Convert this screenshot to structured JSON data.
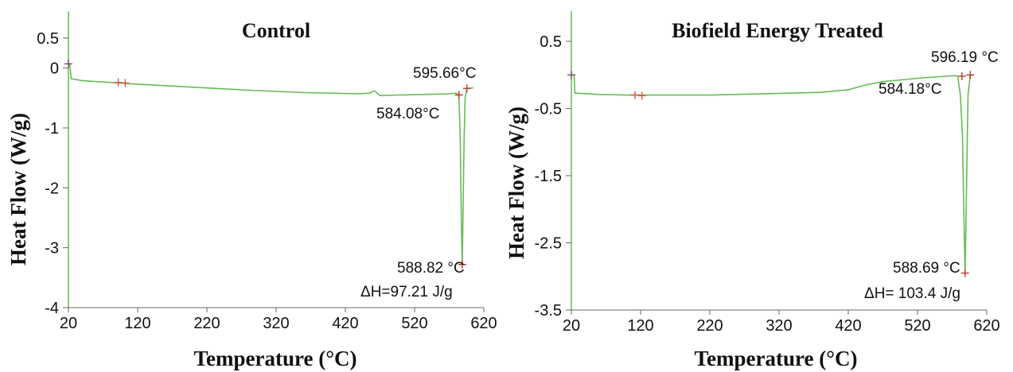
{
  "chart_data": [
    {
      "type": "line",
      "title": "Control",
      "xlabel": "Temperature (°C)",
      "ylabel": "Heat Flow (W/g)",
      "xlim": [
        20,
        620
      ],
      "ylim": [
        -4,
        0.95
      ],
      "x_ticks": [
        20,
        120,
        220,
        320,
        420,
        520,
        620
      ],
      "y_ticks": [
        0.5,
        0,
        -1,
        -2,
        -3,
        -4
      ],
      "y_tick_labels": [
        "0.5",
        "0",
        "-1",
        "-2",
        "-3",
        "-4"
      ],
      "series": [
        {
          "color": "#66bb55",
          "points": [
            [
              20,
              0.07
            ],
            [
              22,
              0.06
            ],
            [
              24,
              -0.18
            ],
            [
              40,
              -0.21
            ],
            [
              80,
              -0.24
            ],
            [
              120,
              -0.27
            ],
            [
              200,
              -0.32
            ],
            [
              280,
              -0.37
            ],
            [
              360,
              -0.41
            ],
            [
              440,
              -0.43
            ],
            [
              455,
              -0.42
            ],
            [
              462,
              -0.38
            ],
            [
              470,
              -0.46
            ],
            [
              500,
              -0.45
            ],
            [
              540,
              -0.44
            ],
            [
              570,
              -0.43
            ],
            [
              580,
              -0.42
            ],
            [
              584,
              -0.45
            ],
            [
              586,
              -1.2
            ],
            [
              587.5,
              -2.5
            ],
            [
              588.82,
              -3.28
            ],
            [
              590,
              -2.4
            ],
            [
              591.5,
              -1.2
            ],
            [
              593,
              -0.5
            ],
            [
              595.66,
              -0.34
            ],
            [
              605,
              -0.33
            ]
          ]
        }
      ],
      "annotations": [
        {
          "text": "595.66°C",
          "x": 595.66,
          "y": -0.34
        },
        {
          "text": "584.08°C",
          "x": 584.08,
          "y": -0.45
        },
        {
          "text": "588.82 °C",
          "x": 588.82,
          "y": -3.28
        },
        {
          "text": "ΔH=97.21 J/g"
        }
      ]
    },
    {
      "type": "line",
      "title": "Biofield Energy Treated",
      "xlabel": "Temperature (°C)",
      "ylabel": "Heat Flow (W/g)",
      "xlim": [
        20,
        620
      ],
      "ylim": [
        -3.5,
        0.95
      ],
      "x_ticks": [
        20,
        120,
        220,
        320,
        420,
        520,
        620
      ],
      "y_ticks": [
        0.5,
        -0.5,
        -1.5,
        -2.5,
        -3.5
      ],
      "y_tick_labels": [
        "0.5",
        "-0.5",
        "-1.5",
        "-2.5",
        "-3.5"
      ],
      "series": [
        {
          "color": "#66bb55",
          "points": [
            [
              20,
              0.0
            ],
            [
              24,
              0.0
            ],
            [
              25,
              -0.27
            ],
            [
              60,
              -0.29
            ],
            [
              100,
              -0.3
            ],
            [
              160,
              -0.3
            ],
            [
              220,
              -0.3
            ],
            [
              300,
              -0.28
            ],
            [
              380,
              -0.26
            ],
            [
              420,
              -0.22
            ],
            [
              445,
              -0.15
            ],
            [
              470,
              -0.1
            ],
            [
              520,
              -0.05
            ],
            [
              560,
              -0.02
            ],
            [
              575,
              -0.01
            ],
            [
              578,
              -0.02
            ],
            [
              582,
              -0.3
            ],
            [
              585,
              -0.9
            ],
            [
              587,
              -2.1
            ],
            [
              588.69,
              -2.95
            ],
            [
              590,
              -2.2
            ],
            [
              591.5,
              -1.2
            ],
            [
              593,
              -0.3
            ],
            [
              596.19,
              -0.0
            ],
            [
              600,
              0.0
            ]
          ]
        }
      ],
      "annotations": [
        {
          "text": "596.19 °C",
          "x": 596.19,
          "y": 0.0
        },
        {
          "text": "584.18°C",
          "x": 584.18,
          "y": -0.02
        },
        {
          "text": "588.69 °C",
          "x": 588.69,
          "y": -2.95
        },
        {
          "text": "ΔH= 103.4 J/g"
        }
      ]
    }
  ]
}
